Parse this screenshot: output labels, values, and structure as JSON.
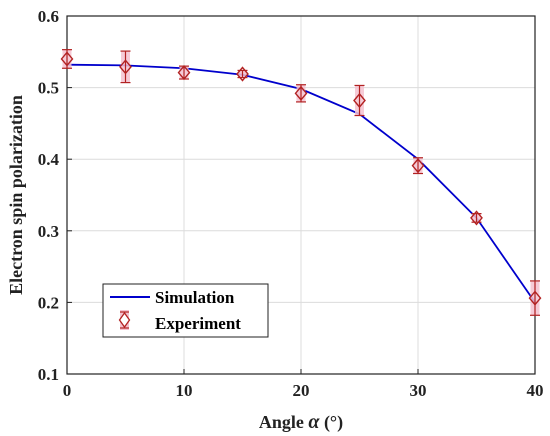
{
  "chart_data": {
    "type": "line",
    "xlabel_prefix": "Angle",
    "xlabel_symbol": "α",
    "xlabel_unit": "(°)",
    "ylabel": "Electron spin polarization",
    "xlim": [
      0,
      40
    ],
    "ylim": [
      0.1,
      0.6
    ],
    "xticks": [
      0,
      10,
      20,
      30,
      40
    ],
    "yticks": [
      0.1,
      0.2,
      0.3,
      0.4,
      0.5,
      0.6
    ],
    "grid": true,
    "legend_placement": "bottom-left",
    "series": [
      {
        "name": "Simulation",
        "kind": "line",
        "color": "#0000cc",
        "x": [
          0,
          5,
          10,
          15,
          20,
          25,
          30,
          35,
          40
        ],
        "y": [
          0.532,
          0.531,
          0.527,
          0.518,
          0.498,
          0.463,
          0.4,
          0.318,
          0.2
        ]
      },
      {
        "name": "Experiment",
        "kind": "errorbar",
        "color": "#b22222",
        "errorbar_fill": "#f4c2d0",
        "x": [
          0,
          5,
          10,
          15,
          20,
          25,
          30,
          35,
          40
        ],
        "y": [
          0.54,
          0.529,
          0.521,
          0.519,
          0.492,
          0.482,
          0.391,
          0.318,
          0.206
        ],
        "err": [
          0.013,
          0.022,
          0.009,
          0.005,
          0.012,
          0.021,
          0.011,
          0.006,
          0.024
        ]
      }
    ]
  }
}
